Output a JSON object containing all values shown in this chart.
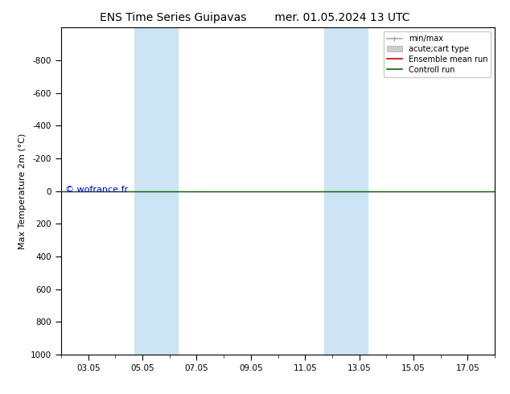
{
  "title": "ENS Time Series Guipavas",
  "title2": "mer. 01.05.2024 13 UTC",
  "ylabel": "Max Temperature 2m (°C)",
  "xlabel": "",
  "xtick_labels": [
    "03.05",
    "05.05",
    "07.05",
    "09.05",
    "11.05",
    "13.05",
    "15.05",
    "17.05"
  ],
  "xtick_values": [
    2,
    4,
    6,
    8,
    10,
    12,
    14,
    16
  ],
  "xlim": [
    1,
    17
  ],
  "ylim_top": -1000,
  "ylim_bottom": 1000,
  "yticks": [
    -800,
    -600,
    -400,
    -200,
    0,
    200,
    400,
    600,
    800,
    1000
  ],
  "shaded_bands": [
    {
      "x_start": 3.7,
      "x_end": 5.3
    },
    {
      "x_start": 10.7,
      "x_end": 12.3
    }
  ],
  "hline_y": 0,
  "hline_color": "#006400",
  "hline_linewidth": 1.0,
  "hline_red_y": 0,
  "hline_red_color": "#cc0000",
  "hline_red_linewidth": 0.8,
  "background_color": "#ffffff",
  "plot_bg_color": "#ffffff",
  "shade_color": "#cde4f5",
  "watermark_text": "© wofrance.fr",
  "watermark_color": "#0000cc",
  "legend_labels": [
    "min/max",
    "acute;cart type",
    "Ensemble mean run",
    "Controll run"
  ],
  "legend_colors": [
    "#aaaaaa",
    "#cccccc",
    "#cc0000",
    "#006400"
  ],
  "title_fontsize": 10,
  "tick_fontsize": 7.5,
  "ylabel_fontsize": 8,
  "legend_fontsize": 7
}
